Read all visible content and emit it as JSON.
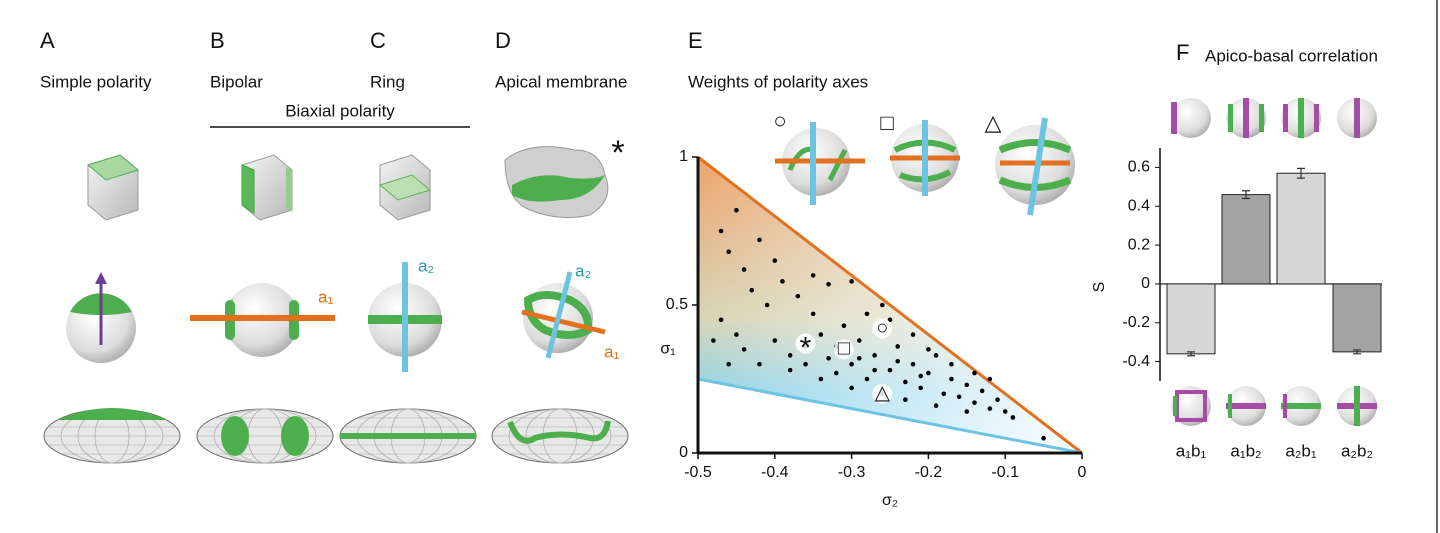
{
  "panels": [
    {
      "letter": "A",
      "title": "Simple polarity"
    },
    {
      "letter": "B",
      "title": "Bipolar"
    },
    {
      "letter": "C",
      "title": "Ring"
    },
    {
      "letter": "D",
      "title": "Apical membrane"
    },
    {
      "letter": "E",
      "title": "Weights of polarity axes"
    },
    {
      "letter": "F",
      "title": "Apico-basal correlation"
    }
  ],
  "group_label": "Biaxial polarity",
  "axis_labels": {
    "a1": "a₁",
    "a2": "a₂"
  },
  "chart_data": [
    {
      "type": "scatter",
      "xlabel": "σ₂",
      "ylabel": "σ₁",
      "xlim": [
        -0.5,
        0
      ],
      "ylim": [
        0,
        1
      ],
      "xticks": [
        -0.5,
        -0.4,
        -0.3,
        -0.2,
        -0.1,
        0
      ],
      "yticks": [
        0,
        0.5,
        1
      ],
      "color": "#000000",
      "x": [
        -0.45,
        -0.47,
        -0.46,
        -0.44,
        -0.42,
        -0.4,
        -0.43,
        -0.41,
        -0.39,
        -0.37,
        -0.33,
        -0.3,
        -0.35,
        -0.47,
        -0.45,
        -0.44,
        -0.42,
        -0.4,
        -0.38,
        -0.36,
        -0.34,
        -0.33,
        -0.32,
        -0.3,
        -0.29,
        -0.28,
        -0.27,
        -0.25,
        -0.24,
        -0.23,
        -0.22,
        -0.21,
        -0.2,
        -0.19,
        -0.18,
        -0.17,
        -0.16,
        -0.15,
        -0.14,
        -0.13,
        -0.12,
        -0.11,
        -0.1,
        -0.09,
        -0.05,
        -0.25,
        -0.22,
        -0.28,
        -0.31,
        -0.26,
        -0.3,
        -0.34,
        -0.38,
        -0.46,
        -0.48,
        -0.36,
        -0.2,
        -0.17,
        -0.14,
        -0.12,
        -0.23,
        -0.19,
        -0.27,
        -0.29,
        -0.32,
        -0.24,
        -0.21,
        -0.15,
        -0.35,
        -0.26
      ],
      "values": [
        0.82,
        0.75,
        0.68,
        0.62,
        0.72,
        0.65,
        0.55,
        0.5,
        0.58,
        0.53,
        0.57,
        0.58,
        0.47,
        0.45,
        0.4,
        0.35,
        0.3,
        0.38,
        0.33,
        0.3,
        0.4,
        0.32,
        0.27,
        0.3,
        0.38,
        0.25,
        0.33,
        0.28,
        0.36,
        0.24,
        0.3,
        0.22,
        0.27,
        0.33,
        0.2,
        0.25,
        0.19,
        0.23,
        0.17,
        0.21,
        0.15,
        0.18,
        0.14,
        0.12,
        0.05,
        0.45,
        0.4,
        0.47,
        0.43,
        0.2,
        0.22,
        0.25,
        0.28,
        0.3,
        0.38,
        0.36,
        0.35,
        0.3,
        0.27,
        0.25,
        0.18,
        0.16,
        0.28,
        0.32,
        0.36,
        0.31,
        0.26,
        0.14,
        0.6,
        0.5
      ],
      "boundaries": {
        "upper": {
          "x": [
            -0.5,
            0
          ],
          "y": [
            1,
            0
          ],
          "color": "#e2701f"
        },
        "lower": {
          "x": [
            -0.5,
            0
          ],
          "y": [
            0.25,
            0
          ],
          "color": "#6cc4e2"
        }
      },
      "markers": [
        {
          "symbol": "○",
          "x": -0.26,
          "y": 0.42
        },
        {
          "symbol": "□",
          "x": -0.31,
          "y": 0.35
        },
        {
          "symbol": "△",
          "x": -0.26,
          "y": 0.2
        },
        {
          "symbol": "*",
          "x": -0.36,
          "y": 0.37
        }
      ]
    },
    {
      "type": "bar",
      "ylabel": "S",
      "categories": [
        "a₁b₁",
        "a₁b₂",
        "a₂b₁",
        "a₂b₂"
      ],
      "values": [
        -0.36,
        0.46,
        0.57,
        -0.35
      ],
      "errors": [
        0.01,
        0.02,
        0.025,
        0.01
      ],
      "colors": [
        "#d6d6d6",
        "#a3a3a3",
        "#d6d6d6",
        "#a3a3a3"
      ],
      "ylim": [
        -0.5,
        0.7
      ],
      "yticks": [
        -0.4,
        -0.2,
        0,
        0.2,
        0.4,
        0.6
      ]
    }
  ]
}
